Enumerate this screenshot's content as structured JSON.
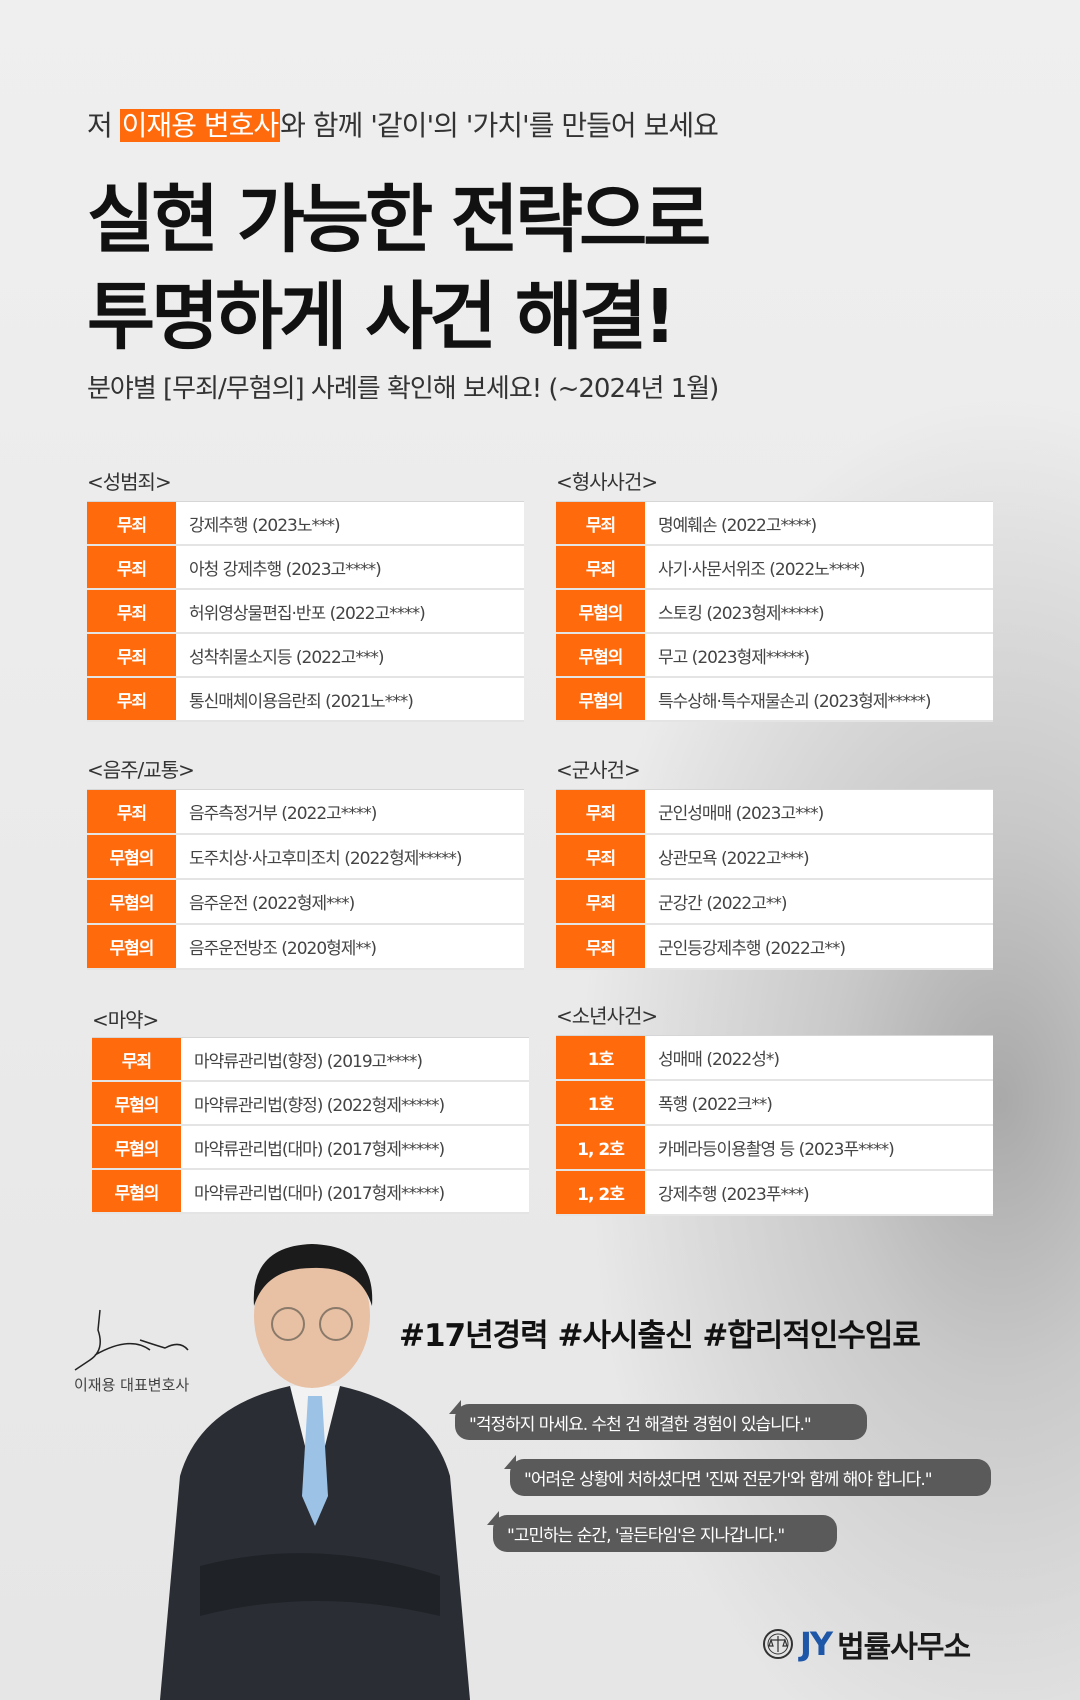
{
  "intro": {
    "prefix": "저 ",
    "highlight": "이재용 변호사",
    "suffix": "와 함께 '같이'의 '가치'를 만들어 보세요"
  },
  "headline": {
    "line1": "실현 가능한 전략으로",
    "line2": "투명하게 사건 해결!"
  },
  "subheading": "분야별 [무죄/무혐의] 사례를 확인해 보세요! (~2024년 1월)",
  "colors": {
    "accent": "#ff6a0c",
    "logo_blue": "#1f57a8",
    "bubble": "#5a5a5a"
  },
  "sections": [
    {
      "title": "<성범죄>",
      "rows": [
        [
          "무죄",
          "강제추행 (2023노***)"
        ],
        [
          "무죄",
          "아청 강제추행 (2023고****)"
        ],
        [
          "무죄",
          "허위영상물편집·반포 (2022고****)"
        ],
        [
          "무죄",
          "성착취물소지등 (2022고***)"
        ],
        [
          "무죄",
          "통신매체이용음란죄 (2021노***)"
        ]
      ]
    },
    {
      "title": "<형사사건>",
      "rows": [
        [
          "무죄",
          "명예훼손 (2022고****)"
        ],
        [
          "무죄",
          "사기·사문서위조 (2022노****)"
        ],
        [
          "무혐의",
          "스토킹 (2023형제*****)"
        ],
        [
          "무혐의",
          "무고 (2023형제*****)"
        ],
        [
          "무혐의",
          "특수상해·특수재물손괴 (2023형제*****)"
        ]
      ]
    },
    {
      "title": "<음주/교통>",
      "rows": [
        [
          "무죄",
          "음주측정거부 (2022고****)"
        ],
        [
          "무혐의",
          "도주치상·사고후미조치 (2022형제*****)"
        ],
        [
          "무혐의",
          "음주운전 (2022형제***)"
        ],
        [
          "무혐의",
          "음주운전방조  (2020형제**)"
        ]
      ]
    },
    {
      "title": "<군사건>",
      "rows": [
        [
          "무죄",
          "군인성매매 (2023고***)"
        ],
        [
          "무죄",
          "상관모욕 (2022고***)"
        ],
        [
          "무죄",
          "군강간 (2022고**)"
        ],
        [
          "무죄",
          "군인등강제추행 (2022고**)"
        ]
      ]
    },
    {
      "title": "<마약>",
      "rows": [
        [
          "무죄",
          "마약류관리법(향정) (2019고****)"
        ],
        [
          "무혐의",
          "마약류관리법(향정) (2022형제*****)"
        ],
        [
          "무혐의",
          "마약류관리법(대마) (2017형제*****)"
        ],
        [
          "무혐의",
          "마약류관리법(대마) (2017형제*****)"
        ]
      ]
    },
    {
      "title": "<소년사건>",
      "rows": [
        [
          "1호",
          "성매매  (2022성*)"
        ],
        [
          "1호",
          "폭행 (2022크**)"
        ],
        [
          "1, 2호",
          "카메라등이용촬영 등 (2023푸****)"
        ],
        [
          "1, 2호",
          "강제추행 (2023푸***)"
        ]
      ]
    }
  ],
  "hashtags": "#17년경력 #사시출신 #합리적인수임료",
  "quotes": [
    "\"걱정하지 마세요. 수천 건 해결한 경험이 있습니다.\"",
    "\"어려운 상황에 처하셨다면 '진짜 전문가'와 함께 해야 합니다.\"",
    "\"고민하는 순간, '골든타임'은 지나갑니다.\""
  ],
  "signature": {
    "name": "이재용 대표변호사"
  },
  "logo": {
    "mark": "JY",
    "name": "법률사무소"
  }
}
